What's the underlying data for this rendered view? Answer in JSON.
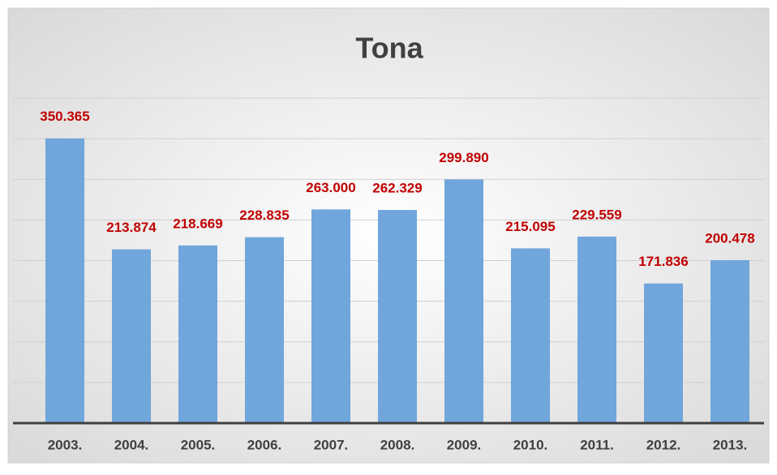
{
  "chart_data": {
    "type": "bar",
    "title": "Tona",
    "categories": [
      "2003.",
      "2004.",
      "2005.",
      "2006.",
      "2007.",
      "2008.",
      "2009.",
      "2010.",
      "2011.",
      "2012.",
      "2013."
    ],
    "values": [
      350.365,
      213.874,
      218.669,
      228.835,
      263.0,
      262.329,
      299.89,
      215.095,
      229.559,
      171.836,
      200.478
    ],
    "value_labels": [
      "350.365",
      "213.874",
      "218.669",
      "228.835",
      "263.000",
      "262.329",
      "299.890",
      "215.095",
      "229.559",
      "171.836",
      "200.478"
    ],
    "color": "#70a6db",
    "ylim": [
      0,
      400
    ],
    "yticks": [
      0,
      50,
      100,
      150,
      200,
      250,
      300,
      350,
      400
    ],
    "grid": true
  }
}
